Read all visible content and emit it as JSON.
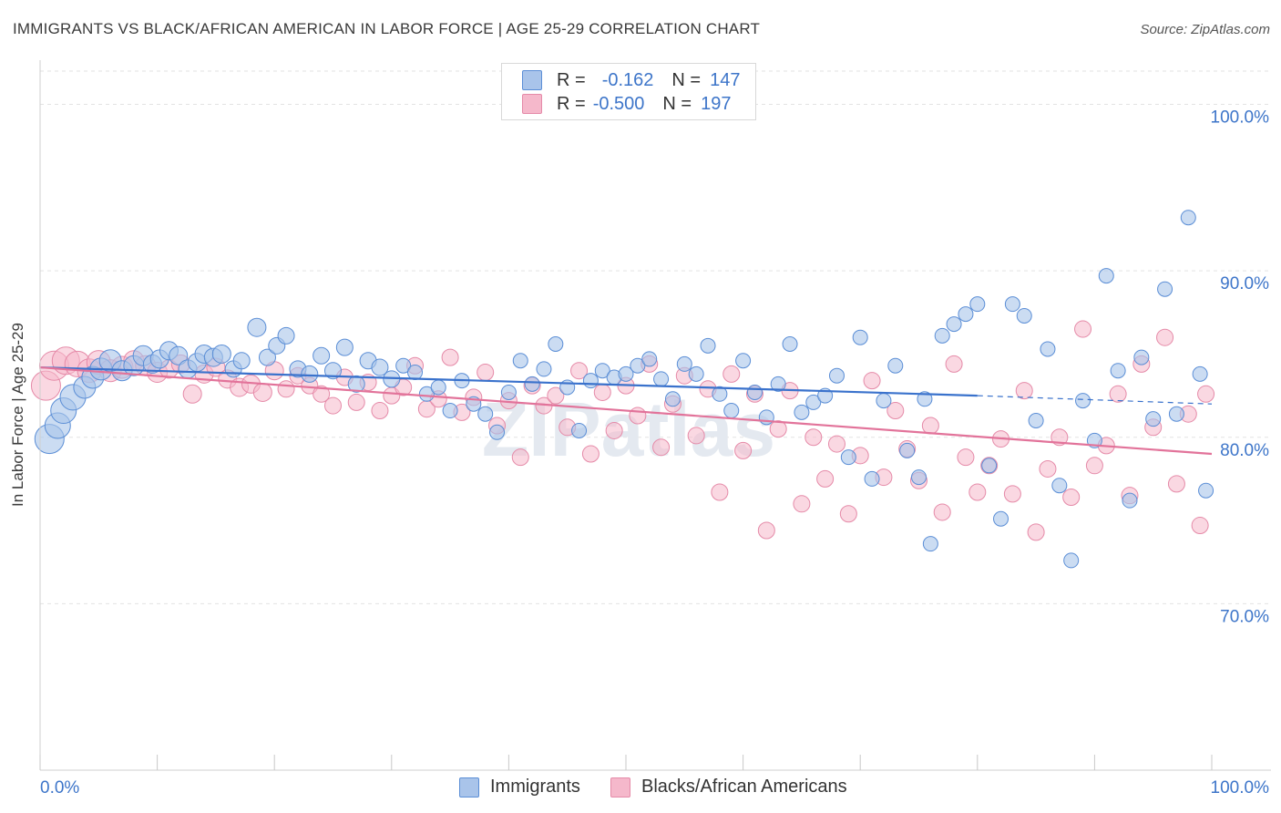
{
  "title": "IMMIGRANTS VS BLACK/AFRICAN AMERICAN IN LABOR FORCE | AGE 25-29 CORRELATION CHART",
  "source": "Source: ZipAtlas.com",
  "watermark": "ZIPatlas",
  "legend_top": {
    "rows": [
      {
        "r_label": "R =",
        "r_value": "-0.162",
        "n_label": "N =",
        "n_value": "147",
        "color": "#a9c4ea"
      },
      {
        "r_label": "R =",
        "r_value": "-0.500",
        "n_label": "N =",
        "n_value": "197",
        "color": "#f5b8cb"
      }
    ]
  },
  "colors": {
    "blue_fill": "#a9c4ea",
    "blue_stroke": "#5b8ed6",
    "blue_line": "#3a72cc",
    "pink_fill": "#f5b8cb",
    "pink_stroke": "#e58aa8",
    "pink_line": "#e2739a",
    "axis_text": "#3d75c9"
  },
  "chart_data": {
    "type": "scatter",
    "title": "IMMIGRANTS VS BLACK/AFRICAN AMERICAN IN LABOR FORCE | AGE 25-29 CORRELATION CHART",
    "xlabel": "",
    "ylabel": "In Labor Force | Age 25-29",
    "xlim": [
      0,
      100
    ],
    "ylim": [
      60,
      102
    ],
    "x_tick_labels": [
      "0.0%",
      "100.0%"
    ],
    "y_ticks": [
      70,
      80,
      90,
      100
    ],
    "y_tick_labels": [
      "70.0%",
      "80.0%",
      "90.0%",
      "100.0%"
    ],
    "grid": true,
    "legend_position": "bottom",
    "series": [
      {
        "name": "Immigrants",
        "r": -0.162,
        "n": 147,
        "trend": {
          "x": [
            0,
            80
          ],
          "y": [
            84.2,
            82.5
          ],
          "dashed_to": [
            100,
            82.0
          ]
        },
        "points": [
          [
            0.8,
            79.9,
            16
          ],
          [
            1.5,
            80.7,
            14
          ],
          [
            2,
            81.6,
            14
          ],
          [
            2.8,
            82.4,
            14
          ],
          [
            3.8,
            83.0,
            12
          ],
          [
            4.5,
            83.6,
            12
          ],
          [
            5.2,
            84.1,
            12
          ],
          [
            6,
            84.6,
            12
          ],
          [
            7,
            84.0,
            11
          ],
          [
            8,
            84.3,
            11
          ],
          [
            8.8,
            84.9,
            11
          ],
          [
            9.6,
            84.4,
            10
          ],
          [
            10.2,
            84.7,
            10
          ],
          [
            11,
            85.2,
            10
          ],
          [
            11.8,
            84.9,
            10
          ],
          [
            12.6,
            84.1,
            10
          ],
          [
            13.4,
            84.5,
            10
          ],
          [
            14,
            85.0,
            10
          ],
          [
            14.8,
            84.8,
            10
          ],
          [
            15.5,
            85.0,
            10
          ],
          [
            16.5,
            84.1,
            9
          ],
          [
            17.2,
            84.6,
            9
          ],
          [
            18.5,
            86.6,
            10
          ],
          [
            19.4,
            84.8,
            9
          ],
          [
            20.2,
            85.5,
            9
          ],
          [
            21,
            86.1,
            9
          ],
          [
            22,
            84.1,
            9
          ],
          [
            23,
            83.8,
            9
          ],
          [
            24,
            84.9,
            9
          ],
          [
            25,
            84.0,
            9
          ],
          [
            26,
            85.4,
            9
          ],
          [
            27,
            83.2,
            9
          ],
          [
            28,
            84.6,
            9
          ],
          [
            29,
            84.2,
            9
          ],
          [
            30,
            83.5,
            9
          ],
          [
            31,
            84.3,
            8
          ],
          [
            32,
            83.9,
            8
          ],
          [
            33,
            82.6,
            8
          ],
          [
            34,
            83.0,
            8
          ],
          [
            35,
            81.6,
            8
          ],
          [
            36,
            83.4,
            8
          ],
          [
            37,
            82.0,
            8
          ],
          [
            38,
            81.4,
            8
          ],
          [
            39,
            80.3,
            8
          ],
          [
            40,
            82.7,
            8
          ],
          [
            41,
            84.6,
            8
          ],
          [
            42,
            83.2,
            8
          ],
          [
            43,
            84.1,
            8
          ],
          [
            44,
            85.6,
            8
          ],
          [
            45,
            83.0,
            8
          ],
          [
            46,
            80.4,
            8
          ],
          [
            47,
            83.4,
            8
          ],
          [
            48,
            84.0,
            8
          ],
          [
            49,
            83.6,
            8
          ],
          [
            50,
            83.8,
            8
          ],
          [
            51,
            84.3,
            8
          ],
          [
            52,
            84.7,
            8
          ],
          [
            53,
            83.5,
            8
          ],
          [
            54,
            82.3,
            8
          ],
          [
            55,
            84.4,
            8
          ],
          [
            56,
            83.8,
            8
          ],
          [
            57,
            85.5,
            8
          ],
          [
            58,
            82.6,
            8
          ],
          [
            59,
            81.6,
            8
          ],
          [
            60,
            84.6,
            8
          ],
          [
            61,
            82.7,
            8
          ],
          [
            62,
            81.2,
            8
          ],
          [
            63,
            83.2,
            8
          ],
          [
            64,
            85.6,
            8
          ],
          [
            65,
            81.5,
            8
          ],
          [
            66,
            82.1,
            8
          ],
          [
            67,
            82.5,
            8
          ],
          [
            68,
            83.7,
            8
          ],
          [
            69,
            78.8,
            8
          ],
          [
            70,
            86.0,
            8
          ],
          [
            71,
            77.5,
            8
          ],
          [
            72,
            82.2,
            8
          ],
          [
            73,
            84.3,
            8
          ],
          [
            74,
            79.2,
            8
          ],
          [
            75,
            77.6,
            8
          ],
          [
            75.5,
            82.3,
            8
          ],
          [
            76,
            73.6,
            8
          ],
          [
            77,
            86.1,
            8
          ],
          [
            78,
            86.8,
            8
          ],
          [
            79,
            87.4,
            8
          ],
          [
            80,
            88.0,
            8
          ],
          [
            81,
            78.3,
            8
          ],
          [
            82,
            75.1,
            8
          ],
          [
            83,
            88.0,
            8
          ],
          [
            84,
            87.3,
            8
          ],
          [
            85,
            81.0,
            8
          ],
          [
            86,
            85.3,
            8
          ],
          [
            87,
            77.1,
            8
          ],
          [
            88,
            72.6,
            8
          ],
          [
            89,
            82.2,
            8
          ],
          [
            90,
            79.8,
            8
          ],
          [
            91,
            89.7,
            8
          ],
          [
            92,
            84.0,
            8
          ],
          [
            93,
            76.2,
            8
          ],
          [
            94,
            84.8,
            8
          ],
          [
            95,
            81.1,
            8
          ],
          [
            96,
            88.9,
            8
          ],
          [
            97,
            81.4,
            8
          ],
          [
            98,
            93.2,
            8
          ],
          [
            99,
            83.8,
            8
          ],
          [
            99.5,
            76.8,
            8
          ]
        ]
      },
      {
        "name": "Blacks/African Americans",
        "r": -0.5,
        "n": 197,
        "trend": {
          "x": [
            0,
            100
          ],
          "y": [
            84.2,
            79.0
          ]
        },
        "points": [
          [
            0.5,
            83.1,
            16
          ],
          [
            1.2,
            84.3,
            16
          ],
          [
            2.2,
            84.6,
            15
          ],
          [
            3.2,
            84.4,
            14
          ],
          [
            4.2,
            84.0,
            13
          ],
          [
            5,
            84.5,
            13
          ],
          [
            6,
            84.0,
            12
          ],
          [
            7,
            84.2,
            12
          ],
          [
            8,
            84.6,
            11
          ],
          [
            9,
            84.3,
            11
          ],
          [
            10,
            83.9,
            11
          ],
          [
            11,
            84.1,
            10
          ],
          [
            12,
            84.4,
            10
          ],
          [
            13,
            82.6,
            10
          ],
          [
            14,
            83.8,
            10
          ],
          [
            15,
            84.2,
            10
          ],
          [
            16,
            83.5,
            10
          ],
          [
            17,
            83.0,
            10
          ],
          [
            18,
            83.2,
            10
          ],
          [
            19,
            82.7,
            10
          ],
          [
            20,
            84.0,
            10
          ],
          [
            21,
            82.9,
            9
          ],
          [
            22,
            83.7,
            9
          ],
          [
            23,
            83.1,
            9
          ],
          [
            24,
            82.6,
            9
          ],
          [
            25,
            81.9,
            9
          ],
          [
            26,
            83.6,
            9
          ],
          [
            27,
            82.1,
            9
          ],
          [
            28,
            83.3,
            9
          ],
          [
            29,
            81.6,
            9
          ],
          [
            30,
            82.5,
            9
          ],
          [
            31,
            83.0,
            9
          ],
          [
            32,
            84.3,
            9
          ],
          [
            33,
            81.7,
            9
          ],
          [
            34,
            82.3,
            9
          ],
          [
            35,
            84.8,
            9
          ],
          [
            36,
            81.5,
            9
          ],
          [
            37,
            82.4,
            9
          ],
          [
            38,
            83.9,
            9
          ],
          [
            39,
            80.7,
            9
          ],
          [
            40,
            82.2,
            9
          ],
          [
            41,
            78.8,
            9
          ],
          [
            42,
            83.1,
            9
          ],
          [
            43,
            81.9,
            9
          ],
          [
            44,
            82.5,
            9
          ],
          [
            45,
            80.6,
            9
          ],
          [
            46,
            84.0,
            9
          ],
          [
            47,
            79.0,
            9
          ],
          [
            48,
            82.7,
            9
          ],
          [
            49,
            80.4,
            9
          ],
          [
            50,
            83.1,
            9
          ],
          [
            51,
            81.3,
            9
          ],
          [
            52,
            84.4,
            9
          ],
          [
            53,
            79.4,
            9
          ],
          [
            54,
            82.0,
            9
          ],
          [
            55,
            83.7,
            9
          ],
          [
            56,
            80.1,
            9
          ],
          [
            57,
            82.9,
            9
          ],
          [
            58,
            76.7,
            9
          ],
          [
            59,
            83.8,
            9
          ],
          [
            60,
            79.2,
            9
          ],
          [
            61,
            82.6,
            9
          ],
          [
            62,
            74.4,
            9
          ],
          [
            63,
            80.5,
            9
          ],
          [
            64,
            82.8,
            9
          ],
          [
            65,
            76.0,
            9
          ],
          [
            66,
            80.0,
            9
          ],
          [
            67,
            77.5,
            9
          ],
          [
            68,
            79.6,
            9
          ],
          [
            69,
            75.4,
            9
          ],
          [
            70,
            78.9,
            9
          ],
          [
            71,
            83.4,
            9
          ],
          [
            72,
            77.6,
            9
          ],
          [
            73,
            81.6,
            9
          ],
          [
            74,
            79.3,
            9
          ],
          [
            75,
            77.4,
            9
          ],
          [
            76,
            80.7,
            9
          ],
          [
            77,
            75.5,
            9
          ],
          [
            78,
            84.4,
            9
          ],
          [
            79,
            78.8,
            9
          ],
          [
            80,
            76.7,
            9
          ],
          [
            81,
            78.3,
            9
          ],
          [
            82,
            79.9,
            9
          ],
          [
            83,
            76.6,
            9
          ],
          [
            84,
            82.8,
            9
          ],
          [
            85,
            74.3,
            9
          ],
          [
            86,
            78.1,
            9
          ],
          [
            87,
            80.0,
            9
          ],
          [
            88,
            76.4,
            9
          ],
          [
            89,
            86.5,
            9
          ],
          [
            90,
            78.3,
            9
          ],
          [
            91,
            79.5,
            9
          ],
          [
            92,
            82.6,
            9
          ],
          [
            93,
            76.5,
            9
          ],
          [
            94,
            84.4,
            9
          ],
          [
            95,
            80.6,
            9
          ],
          [
            96,
            86.0,
            9
          ],
          [
            97,
            77.2,
            9
          ],
          [
            98,
            81.4,
            9
          ],
          [
            99,
            74.7,
            9
          ],
          [
            99.5,
            82.6,
            9
          ]
        ]
      }
    ]
  },
  "bottom_legend": [
    {
      "label": "Immigrants",
      "color": "#a9c4ea"
    },
    {
      "label": "Blacks/African Americans",
      "color": "#f5b8cb"
    }
  ]
}
